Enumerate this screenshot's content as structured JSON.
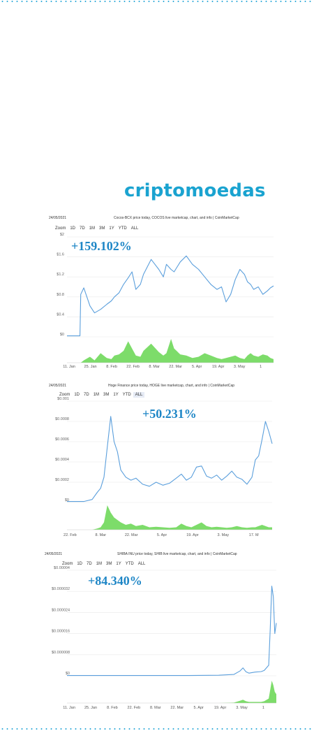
{
  "brand": {
    "text": "criptomoedas",
    "color": "#1aa3d0"
  },
  "colors": {
    "line": "#5b9fdc",
    "volume": "#7ddc6a",
    "grid": "#e8e8e8",
    "pct": "#1e86c6",
    "dots": "#2aa8d8"
  },
  "chart_data": [
    {
      "type": "line",
      "date": "24/05/2021",
      "title": "Cocos-BCX price today, COCOS live marketcap, chart, and info | CoinMarketCap",
      "zoom_label": "Zoom",
      "zoom_options": [
        "1D",
        "7D",
        "1M",
        "3M",
        "1Y",
        "YTD",
        "ALL"
      ],
      "zoom_active": "",
      "change_label": "+159.102%",
      "yticks": [
        "$2",
        "$1.6",
        "$1.2",
        "$0.8",
        "$0.4",
        "$0"
      ],
      "ylim": [
        0,
        2
      ],
      "xticks": [
        "11. Jan",
        "25. Jan",
        "8. Feb",
        "22. Feb",
        "8. Mar",
        "22. Mar",
        "5. Apr",
        "19. Apr",
        "3. May",
        "1"
      ],
      "x_index": [
        0,
        17,
        18,
        22,
        30,
        36,
        44,
        52,
        58,
        62,
        68,
        74,
        80,
        85,
        90,
        96,
        100,
        110,
        120,
        126,
        130,
        136,
        140,
        148,
        156,
        164,
        172,
        180,
        188,
        196,
        202,
        208,
        214,
        220,
        226,
        232,
        236,
        240,
        244,
        250,
        256,
        262,
        266,
        270
      ],
      "series": [
        {
          "values": [
            0.02,
            0.02,
            0.85,
            0.98,
            0.62,
            0.48,
            0.55,
            0.65,
            0.72,
            0.8,
            0.88,
            1.05,
            1.18,
            1.3,
            0.95,
            1.05,
            1.25,
            1.55,
            1.35,
            1.2,
            1.45,
            1.35,
            1.3,
            1.5,
            1.62,
            1.45,
            1.35,
            1.2,
            1.05,
            0.95,
            1.0,
            0.7,
            0.85,
            1.15,
            1.35,
            1.25,
            1.1,
            1.05,
            0.95,
            1.0,
            0.85,
            0.92,
            0.98,
            1.02
          ]
        }
      ],
      "volume": [
        0,
        0,
        0,
        0.1,
        0.25,
        0.1,
        0.4,
        0.2,
        0.15,
        0.3,
        0.35,
        0.5,
        0.9,
        0.6,
        0.3,
        0.25,
        0.5,
        0.8,
        0.45,
        0.3,
        0.4,
        1.0,
        0.6,
        0.35,
        0.3,
        0.2,
        0.25,
        0.4,
        0.3,
        0.2,
        0.15,
        0.2,
        0.25,
        0.3,
        0.2,
        0.15,
        0.3,
        0.4,
        0.3,
        0.25,
        0.35,
        0.3,
        0.2,
        0.15
      ]
    },
    {
      "type": "line",
      "date": "24/05/2021",
      "title": "Hoge Finance price today, HOGE live marketcap, chart, and info | CoinMarketCap",
      "zoom_label": "Zoom",
      "zoom_options": [
        "1D",
        "7D",
        "1M",
        "3M",
        "1Y",
        "YTD",
        "ALL"
      ],
      "zoom_active": "ALL",
      "change_label": "+50.231%",
      "yticks": [
        "$0.001",
        "$0.0008",
        "$0.0006",
        "$0.0004",
        "$0.0002",
        "$0"
      ],
      "ylim": [
        0,
        0.001
      ],
      "xticks": [
        "22. Feb",
        "8. Mar",
        "22. Mar",
        "5. Apr",
        "19. Apr",
        "3. May",
        "17. M"
      ],
      "x_index": [
        0,
        20,
        30,
        36,
        40,
        44,
        48,
        52,
        56,
        60,
        64,
        70,
        76,
        82,
        90,
        98,
        106,
        114,
        122,
        130,
        136,
        142,
        148,
        154,
        160,
        166,
        172,
        178,
        184,
        190,
        196,
        202,
        208,
        214,
        220,
        224,
        228,
        232,
        236,
        240,
        244
      ],
      "series": [
        {
          "values": [
            1e-05,
            1e-05,
            3e-05,
            0.0001,
            0.00014,
            0.00025,
            0.00055,
            0.00085,
            0.0006,
            0.0005,
            0.00032,
            0.00025,
            0.00022,
            0.00024,
            0.00018,
            0.00016,
            0.0002,
            0.00017,
            0.00019,
            0.00024,
            0.00028,
            0.00022,
            0.00025,
            0.00035,
            0.00036,
            0.00026,
            0.00024,
            0.00027,
            0.00022,
            0.00026,
            0.00031,
            0.00025,
            0.00023,
            0.00018,
            0.00025,
            0.00042,
            0.00046,
            0.00062,
            0.0008,
            0.0007,
            0.00058
          ]
        }
      ],
      "volume": [
        0,
        0,
        0,
        0.05,
        0.1,
        0.3,
        1.0,
        0.7,
        0.5,
        0.4,
        0.3,
        0.2,
        0.25,
        0.15,
        0.2,
        0.1,
        0.12,
        0.1,
        0.08,
        0.1,
        0.25,
        0.15,
        0.1,
        0.2,
        0.3,
        0.15,
        0.1,
        0.12,
        0.1,
        0.08,
        0.1,
        0.15,
        0.1,
        0.08,
        0.1,
        0.1,
        0.15,
        0.2,
        0.15,
        0.1,
        0.1
      ]
    },
    {
      "type": "line",
      "date": "24/05/2021",
      "title": "SHIBA INU price today, SHIB live marketcap, chart, and info | CoinMarketCap",
      "zoom_label": "Zoom",
      "zoom_options": [
        "1D",
        "7D",
        "1M",
        "3M",
        "1Y",
        "YTD",
        "ALL"
      ],
      "zoom_active": "",
      "change_label": "+84.340%",
      "yticks": [
        "$0.00004",
        "$0.000032",
        "$0.000024",
        "$0.000016",
        "$0.000008",
        "$0"
      ],
      "ylim": [
        0,
        4e-05
      ],
      "xticks": [
        "11. Jan",
        "25. Jan",
        "8. Feb",
        "22. Feb",
        "8. Mar",
        "22. Mar",
        "5. Apr",
        "19. Apr",
        "3. May",
        "1"
      ],
      "x_index": [
        0,
        40,
        80,
        120,
        160,
        200,
        220,
        228,
        232,
        236,
        240,
        248,
        256,
        260,
        266,
        268,
        270,
        272,
        274,
        276
      ],
      "series": [
        {
          "values": [
            1e-07,
            1e-07,
            1e-07,
            1e-07,
            1e-07,
            2e-07,
            5e-07,
            1.8e-06,
            3e-06,
            1.5e-06,
            1e-06,
            1.4e-06,
            1.6e-06,
            2e-06,
            4e-06,
            1.8e-05,
            3.4e-05,
            3e-05,
            1.6e-05,
            2e-05
          ]
        }
      ],
      "volume": [
        0,
        0,
        0,
        0,
        0,
        0,
        0.02,
        0.1,
        0.15,
        0.08,
        0.05,
        0.05,
        0.05,
        0.08,
        0.2,
        0.6,
        1.0,
        0.8,
        0.5,
        0.4
      ]
    }
  ]
}
